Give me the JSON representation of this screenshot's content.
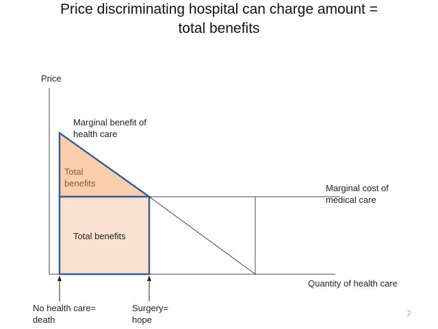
{
  "title_line1": "Price discriminating  hospital can charge amount =",
  "title_line2": "total benefits",
  "labels": {
    "y_axis": "Price",
    "x_axis": "Quantity of health care",
    "mb_line1": "Marginal benefit of",
    "mb_line2": "health care",
    "mc_line1": "Marginal cost of",
    "mc_line2": "medical care",
    "triangle_line1": "Total",
    "triangle_line2": "benefits",
    "rect": "Total benefits",
    "left_arrow_line1": "No health care=",
    "left_arrow_line2": "death",
    "right_arrow_line1": "Surgery=",
    "right_arrow_line2": "hope"
  },
  "page_number": "2",
  "colors": {
    "triangle_fill": "#f9cfae",
    "rect_fill": "#fbe1cf",
    "outline": "#3a5f96",
    "line": "#333333"
  }
}
